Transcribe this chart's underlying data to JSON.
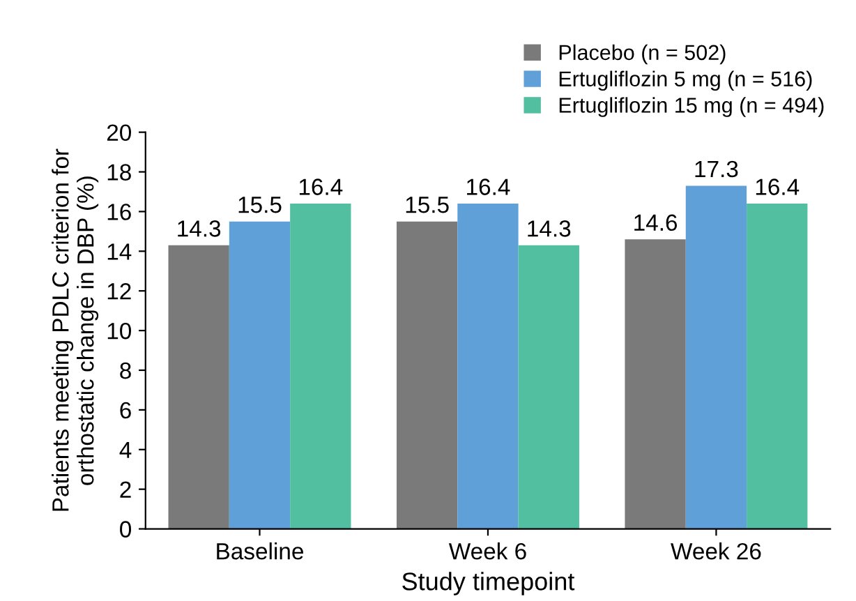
{
  "chart_data": {
    "type": "bar",
    "xlabel": "Study timepoint",
    "ylabel": "Patients meeting PDLC criterion for\northostatic change in DBP (%)",
    "categories": [
      "Baseline",
      "Week 6",
      "Week 26"
    ],
    "series": [
      {
        "name": "Placebo (n = 502)",
        "color": "#7a7a7a",
        "values": [
          14.3,
          15.5,
          14.6
        ]
      },
      {
        "name": "Ertugliflozin 5 mg (n = 516)",
        "color": "#5fa0d8",
        "values": [
          15.5,
          16.4,
          17.3
        ]
      },
      {
        "name": "Ertugliflozin 15 mg (n = 494)",
        "color": "#52c0a0",
        "values": [
          16.4,
          14.3,
          16.4
        ]
      }
    ],
    "ylim": [
      0,
      20
    ],
    "yticks": [
      0,
      2,
      4,
      6,
      8,
      10,
      12,
      14,
      16,
      18,
      20
    ],
    "grid": false,
    "legend": "top right",
    "data_labels": true
  }
}
